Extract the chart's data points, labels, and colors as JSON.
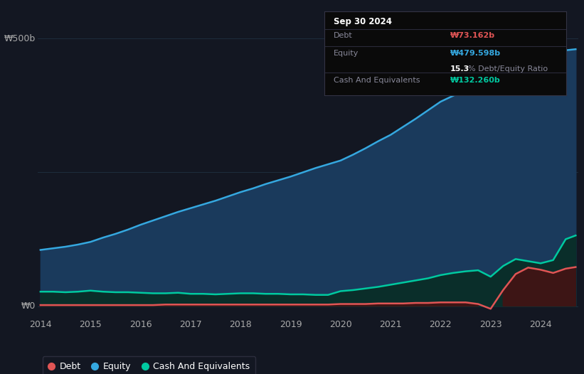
{
  "background_color": "#131722",
  "plot_bg_color": "#131722",
  "grid_color": "#1e2d3d",
  "title": "Sep 30 2024",
  "tooltip": {
    "debt_label": "Debt",
    "debt_value": "₩73.162b",
    "equity_label": "Equity",
    "equity_value": "₩479.598b",
    "ratio": "15.3% Debt/Equity Ratio",
    "cash_label": "Cash And Equivalents",
    "cash_value": "₩132.260b"
  },
  "ylabel_500": "₩500b",
  "ylabel_0": "₩0",
  "x_labels": [
    "2014",
    "2015",
    "2016",
    "2017",
    "2018",
    "2019",
    "2020",
    "2021",
    "2022",
    "2023",
    "2024"
  ],
  "legend": [
    "Debt",
    "Equity",
    "Cash And Equivalents"
  ],
  "legend_colors": [
    "#e05555",
    "#35a8e0",
    "#00c9a0"
  ],
  "equity_color": "#35a8e0",
  "debt_color": "#e05555",
  "cash_color": "#00c9a0",
  "equity_fill": "#1a3a5c",
  "cash_fill": "#0a2e2a",
  "debt_fill": "#3d1515",
  "years": [
    2014.0,
    2014.25,
    2014.5,
    2014.75,
    2015.0,
    2015.25,
    2015.5,
    2015.75,
    2016.0,
    2016.25,
    2016.5,
    2016.75,
    2017.0,
    2017.25,
    2017.5,
    2017.75,
    2018.0,
    2018.25,
    2018.5,
    2018.75,
    2019.0,
    2019.25,
    2019.5,
    2019.75,
    2020.0,
    2020.25,
    2020.5,
    2020.75,
    2021.0,
    2021.25,
    2021.5,
    2021.75,
    2022.0,
    2022.25,
    2022.5,
    2022.75,
    2023.0,
    2023.25,
    2023.5,
    2023.75,
    2024.0,
    2024.25,
    2024.5,
    2024.7
  ],
  "equity": [
    105,
    108,
    111,
    115,
    120,
    128,
    135,
    143,
    152,
    160,
    168,
    176,
    183,
    190,
    197,
    205,
    213,
    220,
    228,
    235,
    242,
    250,
    258,
    265,
    272,
    283,
    295,
    308,
    320,
    335,
    350,
    366,
    382,
    393,
    404,
    414,
    424,
    438,
    452,
    462,
    468,
    473,
    478,
    480
  ],
  "debt": [
    2,
    2,
    2,
    2,
    2,
    2,
    2,
    2,
    2,
    2,
    3,
    3,
    3,
    3,
    3,
    3,
    3,
    3,
    3,
    3,
    3,
    3,
    3,
    3,
    4,
    4,
    4,
    5,
    5,
    5,
    6,
    6,
    7,
    7,
    7,
    4,
    -5,
    30,
    60,
    72,
    68,
    62,
    70,
    73
  ],
  "cash": [
    27,
    27,
    26,
    27,
    29,
    27,
    26,
    26,
    25,
    24,
    24,
    25,
    23,
    23,
    22,
    23,
    24,
    24,
    23,
    23,
    22,
    22,
    21,
    21,
    28,
    30,
    33,
    36,
    40,
    44,
    48,
    52,
    58,
    62,
    65,
    67,
    55,
    75,
    88,
    84,
    80,
    86,
    125,
    132
  ]
}
